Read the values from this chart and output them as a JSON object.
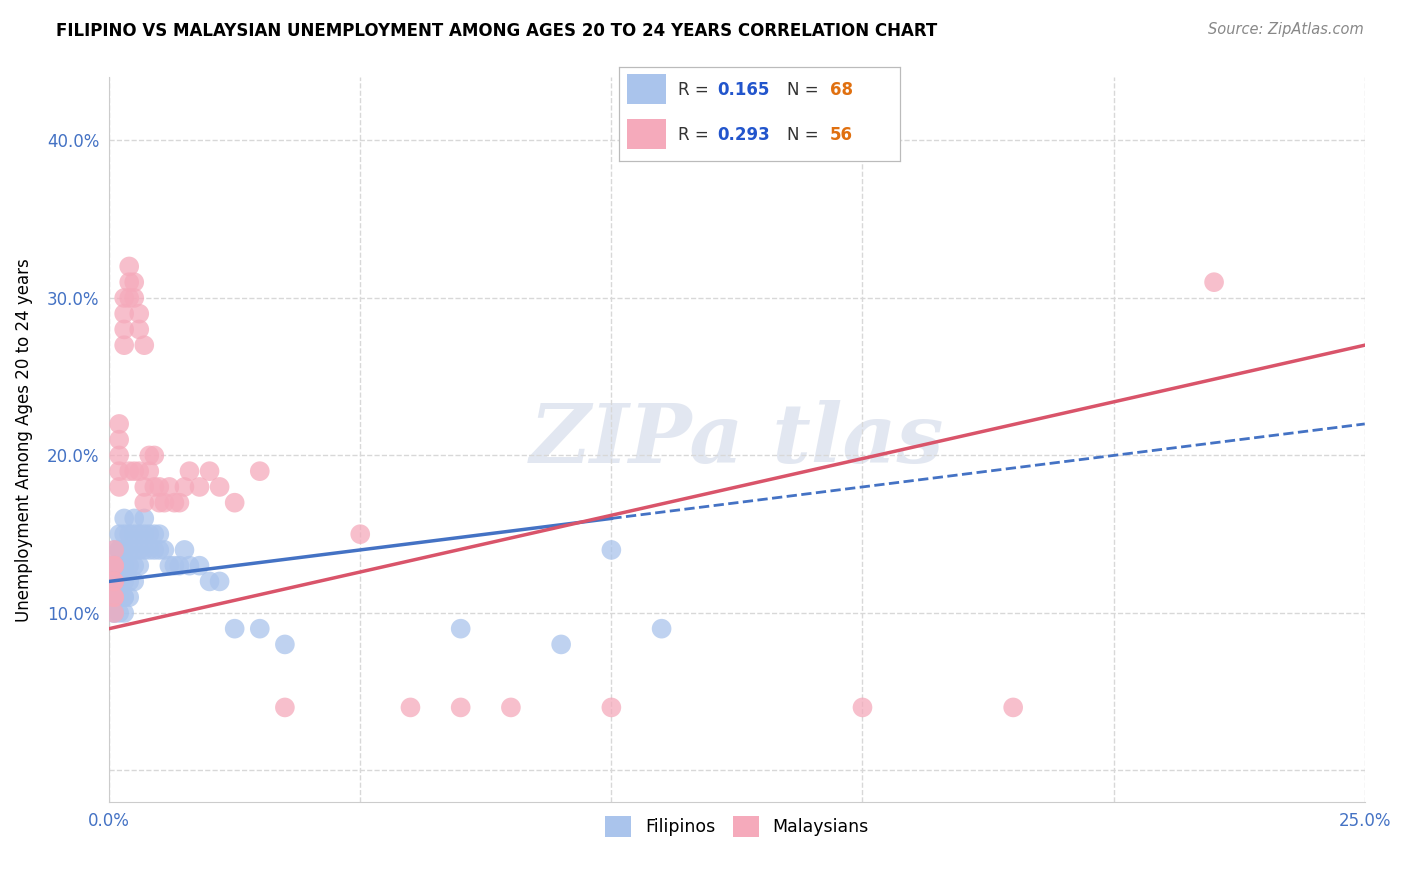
{
  "title": "FILIPINO VS MALAYSIAN UNEMPLOYMENT AMONG AGES 20 TO 24 YEARS CORRELATION CHART",
  "source": "Source: ZipAtlas.com",
  "ylabel": "Unemployment Among Ages 20 to 24 years",
  "xlim": [
    0.0,
    0.25
  ],
  "ylim": [
    -0.02,
    0.44
  ],
  "filipino_R": 0.165,
  "filipino_N": 68,
  "malaysian_R": 0.293,
  "malaysian_N": 56,
  "filipino_color": "#aac4ec",
  "malaysian_color": "#f5aabb",
  "filipino_trend_color": "#4472c4",
  "malaysian_trend_color": "#d9546a",
  "background_color": "#ffffff",
  "grid_color": "#d8d8d8",
  "legend_R_color": "#2255cc",
  "legend_N_color": "#e07010",
  "filipino_x": [
    0.001,
    0.001,
    0.001,
    0.001,
    0.001,
    0.001,
    0.001,
    0.001,
    0.001,
    0.001,
    0.002,
    0.002,
    0.002,
    0.002,
    0.002,
    0.002,
    0.002,
    0.002,
    0.002,
    0.002,
    0.003,
    0.003,
    0.003,
    0.003,
    0.003,
    0.003,
    0.003,
    0.003,
    0.003,
    0.003,
    0.004,
    0.004,
    0.004,
    0.004,
    0.004,
    0.005,
    0.005,
    0.005,
    0.005,
    0.005,
    0.006,
    0.006,
    0.006,
    0.007,
    0.007,
    0.007,
    0.008,
    0.008,
    0.009,
    0.009,
    0.01,
    0.01,
    0.011,
    0.012,
    0.013,
    0.014,
    0.015,
    0.016,
    0.018,
    0.02,
    0.022,
    0.025,
    0.03,
    0.035,
    0.07,
    0.09,
    0.1,
    0.11
  ],
  "filipino_y": [
    0.12,
    0.13,
    0.14,
    0.11,
    0.1,
    0.13,
    0.12,
    0.11,
    0.1,
    0.13,
    0.15,
    0.14,
    0.13,
    0.12,
    0.11,
    0.14,
    0.13,
    0.12,
    0.11,
    0.1,
    0.15,
    0.14,
    0.13,
    0.12,
    0.11,
    0.1,
    0.16,
    0.14,
    0.13,
    0.11,
    0.15,
    0.14,
    0.13,
    0.12,
    0.11,
    0.16,
    0.15,
    0.14,
    0.13,
    0.12,
    0.15,
    0.14,
    0.13,
    0.16,
    0.15,
    0.14,
    0.15,
    0.14,
    0.15,
    0.14,
    0.15,
    0.14,
    0.14,
    0.13,
    0.13,
    0.13,
    0.14,
    0.13,
    0.13,
    0.12,
    0.12,
    0.09,
    0.09,
    0.08,
    0.09,
    0.08,
    0.14,
    0.09
  ],
  "malaysian_x": [
    0.001,
    0.001,
    0.001,
    0.001,
    0.001,
    0.001,
    0.001,
    0.001,
    0.002,
    0.002,
    0.002,
    0.002,
    0.002,
    0.003,
    0.003,
    0.003,
    0.003,
    0.004,
    0.004,
    0.004,
    0.004,
    0.005,
    0.005,
    0.005,
    0.006,
    0.006,
    0.006,
    0.007,
    0.007,
    0.007,
    0.008,
    0.008,
    0.009,
    0.009,
    0.01,
    0.01,
    0.011,
    0.012,
    0.013,
    0.014,
    0.015,
    0.016,
    0.018,
    0.02,
    0.022,
    0.025,
    0.03,
    0.035,
    0.05,
    0.06,
    0.07,
    0.08,
    0.1,
    0.15,
    0.18,
    0.22
  ],
  "malaysian_y": [
    0.13,
    0.12,
    0.14,
    0.11,
    0.13,
    0.12,
    0.11,
    0.1,
    0.22,
    0.21,
    0.2,
    0.19,
    0.18,
    0.3,
    0.29,
    0.28,
    0.27,
    0.32,
    0.31,
    0.3,
    0.19,
    0.31,
    0.3,
    0.19,
    0.29,
    0.28,
    0.19,
    0.27,
    0.18,
    0.17,
    0.2,
    0.19,
    0.2,
    0.18,
    0.18,
    0.17,
    0.17,
    0.18,
    0.17,
    0.17,
    0.18,
    0.19,
    0.18,
    0.19,
    0.18,
    0.17,
    0.19,
    0.04,
    0.15,
    0.04,
    0.04,
    0.04,
    0.04,
    0.04,
    0.04,
    0.31
  ]
}
